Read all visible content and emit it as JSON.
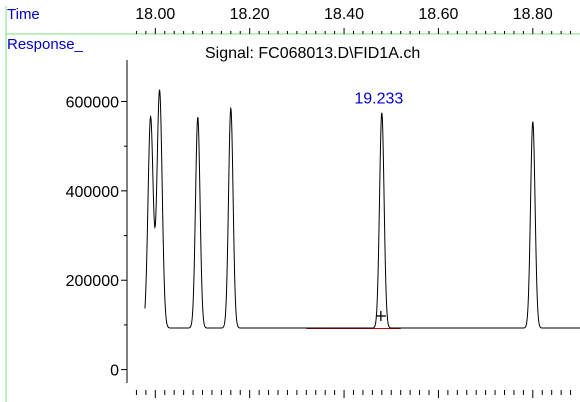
{
  "header": {
    "time_label": "Time",
    "response_label": "Response_",
    "signal_title": "Signal: FC068013.D\\FID1A.ch"
  },
  "colors": {
    "label_blue": "#0000cc",
    "frame_green": "#7fdc7f",
    "trace": "#000000",
    "baseline_marker": "#cc0000"
  },
  "chart_data": {
    "type": "line",
    "title": "Signal: FC068013.D\\FID1A.ch",
    "xlabel": "Time",
    "ylabel": "Response_",
    "x_tick_labels": [
      "18.00",
      "18.20",
      "18.40",
      "18.60",
      "18.80"
    ],
    "x_ticks": [
      18.0,
      18.2,
      18.4,
      18.6,
      18.8
    ],
    "y_tick_labels": [
      "0",
      "200000",
      "400000",
      "600000"
    ],
    "y_ticks": [
      0,
      200000,
      400000,
      600000
    ],
    "xlim": [
      17.94,
      18.9
    ],
    "ylim": [
      -30000,
      760000
    ],
    "baseline": 93000,
    "peaks": [
      {
        "rt": 17.99,
        "height": 565000,
        "width": 0.0055
      },
      {
        "rt": 18.009,
        "height": 625000,
        "width": 0.0055
      },
      {
        "rt": 18.09,
        "height": 565000,
        "width": 0.0048
      },
      {
        "rt": 18.16,
        "height": 585000,
        "width": 0.0048
      },
      {
        "rt": 18.48,
        "height": 575000,
        "width": 0.0048
      },
      {
        "rt": 18.8,
        "height": 555000,
        "width": 0.0048
      }
    ],
    "annotation": {
      "label": "19.233",
      "peak_index": 4
    },
    "integration_marker": {
      "x": 18.478,
      "y": 120000
    },
    "baseline_segment": {
      "x_start": 18.32,
      "x_end": 18.52
    }
  }
}
